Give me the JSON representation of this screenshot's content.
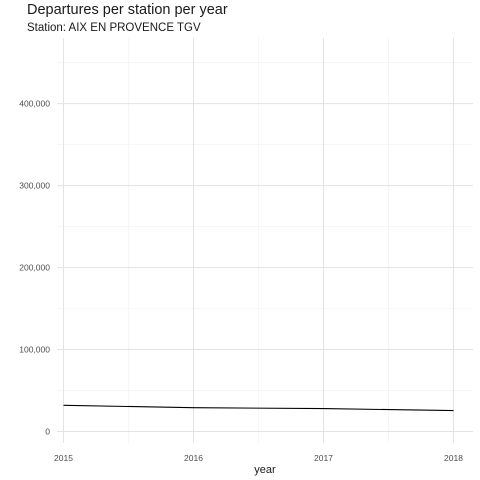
{
  "chart_data": {
    "type": "line",
    "title": "Departures per station per year",
    "subtitle": "Station: AIX EN PROVENCE TGV",
    "xlabel": "year",
    "ylabel": "",
    "x": [
      2015,
      2016,
      2017,
      2018
    ],
    "x_tick_labels": [
      "2015",
      "2016",
      "2017",
      "2018"
    ],
    "y_ticks": [
      0,
      100000,
      200000,
      300000,
      400000
    ],
    "y_tick_labels": [
      "0",
      "100,000",
      "200,000",
      "300,000",
      "400,000"
    ],
    "ylim": [
      -14000,
      480000
    ],
    "xlim": [
      2014.95,
      2018.15
    ],
    "grid": true,
    "series": [
      {
        "values": [
          32000,
          29000,
          28000,
          25500
        ],
        "color": "#000000"
      }
    ]
  }
}
